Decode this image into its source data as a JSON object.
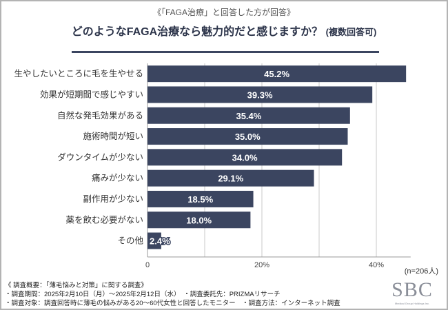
{
  "subtitle": "《「FAGA治療」と回答した方が回答》",
  "chart_data": {
    "type": "bar",
    "orientation": "horizontal",
    "title": "どのようなFAGA治療なら魅力的だと感じますか？",
    "title_note": "(複数回答可)",
    "categories": [
      "生やしたいところに毛を生やせる",
      "効果が短期間で感じやすい",
      "自然な発毛効果がある",
      "施術時間が短い",
      "ダウンタイムが少ない",
      "痛みが少ない",
      "副作用が少ない",
      "薬を飲む必要がない",
      "その他"
    ],
    "values": [
      45.2,
      39.3,
      35.4,
      35.0,
      34.0,
      29.1,
      18.5,
      18.0,
      2.4
    ],
    "data_labels": [
      "45.2%",
      "39.3%",
      "35.4%",
      "35.0%",
      "34.0%",
      "29.1%",
      "18.5%",
      "18.0%",
      "2.4%"
    ],
    "xlim": [
      0,
      50
    ],
    "x_ticks": [
      {
        "value": 0,
        "label": "0"
      },
      {
        "value": 20,
        "label": "20%"
      },
      {
        "value": 40,
        "label": "40%"
      }
    ],
    "gridlines": [
      10,
      20,
      30,
      40
    ],
    "grid": true,
    "bar_color": "#3b4560",
    "sample_note": "(n=206人)"
  },
  "notes": [
    "《 調査概要：「薄毛悩みと対策」に関する調査》",
    "・調査期間：2025年2月10日（月）～2025年2月12日（水）　・調査委託先：PRIZMAリサーチ",
    "・調査対象：調査回答時に薄毛の悩みがある20～60代女性と回答したモニター　・調査方法：インターネット調査"
  ],
  "logo": {
    "text": "SBC",
    "tagline": "Medical Group Holdings Inc."
  }
}
